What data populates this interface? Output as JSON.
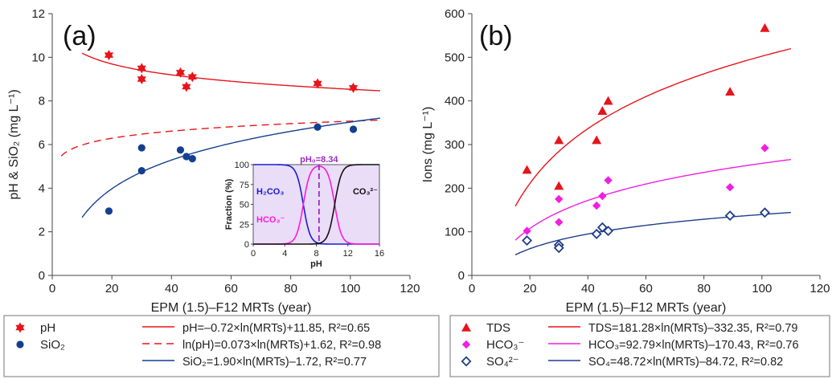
{
  "colors": {
    "red": "#e5151b",
    "blue": "#143f8f",
    "magenta": "#f01fe0",
    "navy": "#1f3d8a",
    "inset_bg": "#e9ddf8",
    "inset_purple": "#9b2cc0",
    "inset_blue": "#1b1bd1",
    "inset_magenta": "#ff1ad9"
  },
  "chart_data": [
    {
      "id": "a",
      "type": "scatter",
      "panel_label": "(a)",
      "xlabel": "EPM (1.5)–F12 MRTs (year)",
      "ylabel": "pH & SiO₂ (mg L⁻¹)",
      "xlim": [
        0,
        120
      ],
      "ylim": [
        0,
        12
      ],
      "xticks": [
        0,
        20,
        40,
        60,
        80,
        100,
        120
      ],
      "yticks": [
        0,
        2,
        4,
        6,
        8,
        10,
        12
      ],
      "grid": false,
      "legend_position": "bottom",
      "series": [
        {
          "name": "pH",
          "marker": "star",
          "color": "#e5151b",
          "points": [
            [
              19,
              10.1
            ],
            [
              30,
              9.5
            ],
            [
              30,
              9.0
            ],
            [
              43,
              9.3
            ],
            [
              45,
              8.65
            ],
            [
              47,
              9.1
            ],
            [
              89,
              8.8
            ],
            [
              101,
              8.6
            ]
          ]
        },
        {
          "name": "SiO₂",
          "marker": "circle",
          "color": "#143f8f",
          "points": [
            [
              19,
              2.95
            ],
            [
              30,
              5.85
            ],
            [
              30,
              4.8
            ],
            [
              43,
              5.75
            ],
            [
              45,
              5.45
            ],
            [
              47,
              5.35
            ],
            [
              89,
              6.8
            ],
            [
              101,
              6.7
            ]
          ]
        }
      ],
      "fits": [
        {
          "label": "pH=–0.72×ln(MRTs)+11.85, R²=0.65",
          "a": -0.72,
          "b": 11.85,
          "transform": "linear",
          "style": "solid",
          "color": "#e5151b",
          "x_range": [
            10,
            110
          ]
        },
        {
          "label": "ln(pH)=0.073×ln(MRTs)+1.62, R²=0.98",
          "a": 0.073,
          "b": 1.62,
          "transform": "exp",
          "style": "dashed",
          "color": "#e5151b",
          "x_range": [
            3,
            110
          ]
        },
        {
          "label": "SiO₂=1.90×ln(MRTs)–1.72, R²=0.77",
          "a": 1.9,
          "b": -1.72,
          "transform": "linear",
          "style": "solid",
          "color": "#143f8f",
          "x_range": [
            10,
            110
          ]
        }
      ],
      "inset": {
        "title": "pH₀=8.34",
        "xlabel": "pH",
        "ylabel": "Fraction (%)",
        "xlim": [
          0,
          16
        ],
        "ylim": [
          0,
          100
        ],
        "xticks": [
          0,
          4,
          8,
          12,
          16
        ],
        "yticks": [
          0,
          25,
          50,
          75,
          100
        ],
        "species": [
          {
            "label": "H₂CO₃",
            "pK": 6.35,
            "role": "acid",
            "color": "#1b1bd1"
          },
          {
            "label": "HCO₃⁻",
            "role": "middle",
            "color": "#ff1ad9"
          },
          {
            "label": "CO₃²⁻",
            "pK": 10.33,
            "role": "base",
            "color": "#111111"
          }
        ],
        "ph0": 8.34
      }
    },
    {
      "id": "b",
      "type": "scatter",
      "panel_label": "(b)",
      "xlabel": "EPM (1.5)–F12 MRTs (year)",
      "ylabel": "Ions (mg L⁻¹)",
      "xlim": [
        0,
        120
      ],
      "ylim": [
        0,
        600
      ],
      "xticks": [
        0,
        20,
        40,
        60,
        80,
        100,
        120
      ],
      "yticks": [
        0,
        100,
        200,
        300,
        400,
        500,
        600
      ],
      "grid": false,
      "legend_position": "bottom",
      "series": [
        {
          "name": "TDS",
          "marker": "triangle",
          "color": "#e5151b",
          "points": [
            [
              19,
              242
            ],
            [
              30,
              310
            ],
            [
              30,
              205
            ],
            [
              43,
              310
            ],
            [
              45,
              377
            ],
            [
              47,
              400
            ],
            [
              89,
              421
            ],
            [
              101,
              567
            ]
          ]
        },
        {
          "name": "HCO₃⁻",
          "marker": "diamond",
          "color": "#f01fe0",
          "points": [
            [
              19,
              102
            ],
            [
              30,
              175
            ],
            [
              30,
              122
            ],
            [
              43,
              160
            ],
            [
              45,
              182
            ],
            [
              47,
              218
            ],
            [
              89,
              202
            ],
            [
              101,
              292
            ]
          ]
        },
        {
          "name": "SO₄²⁻",
          "marker": "diamond-open",
          "color": "#1f3d8a",
          "points": [
            [
              19,
              80
            ],
            [
              30,
              70
            ],
            [
              30,
              63
            ],
            [
              43,
              95
            ],
            [
              45,
              110
            ],
            [
              47,
              102
            ],
            [
              89,
              137
            ],
            [
              101,
              144
            ]
          ]
        }
      ],
      "fits": [
        {
          "label": "TDS=181.28×ln(MRTs)–332.35, R²=0.79",
          "a": 181.28,
          "b": -332.35,
          "transform": "linear",
          "style": "solid",
          "color": "#e5151b",
          "x_range": [
            15,
            110
          ]
        },
        {
          "label": "HCO₃=92.79×ln(MRTs)–170.43, R²=0.76",
          "a": 92.79,
          "b": -170.43,
          "transform": "linear",
          "style": "solid",
          "color": "#f01fe0",
          "x_range": [
            15,
            110
          ]
        },
        {
          "label": "SO₄=48.72×ln(MRTs)–84.72, R²=0.82",
          "a": 48.72,
          "b": -84.72,
          "transform": "linear",
          "style": "solid",
          "color": "#1f3d8a",
          "x_range": [
            15,
            110
          ]
        }
      ]
    }
  ]
}
